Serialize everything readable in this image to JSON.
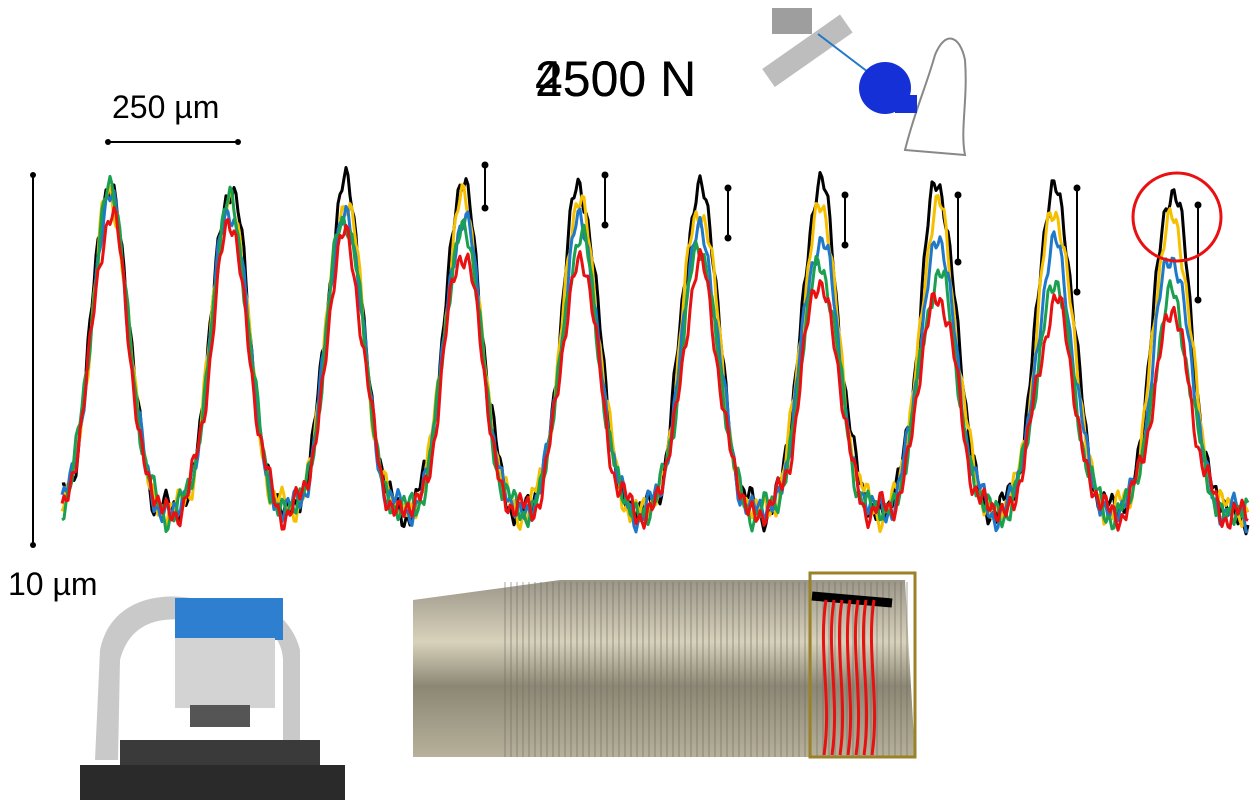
{
  "labels": {
    "scale_x": "250 µm",
    "scale_y": "10 µm",
    "force": [
      "2500 N",
      "4500 N"
    ]
  }
}
